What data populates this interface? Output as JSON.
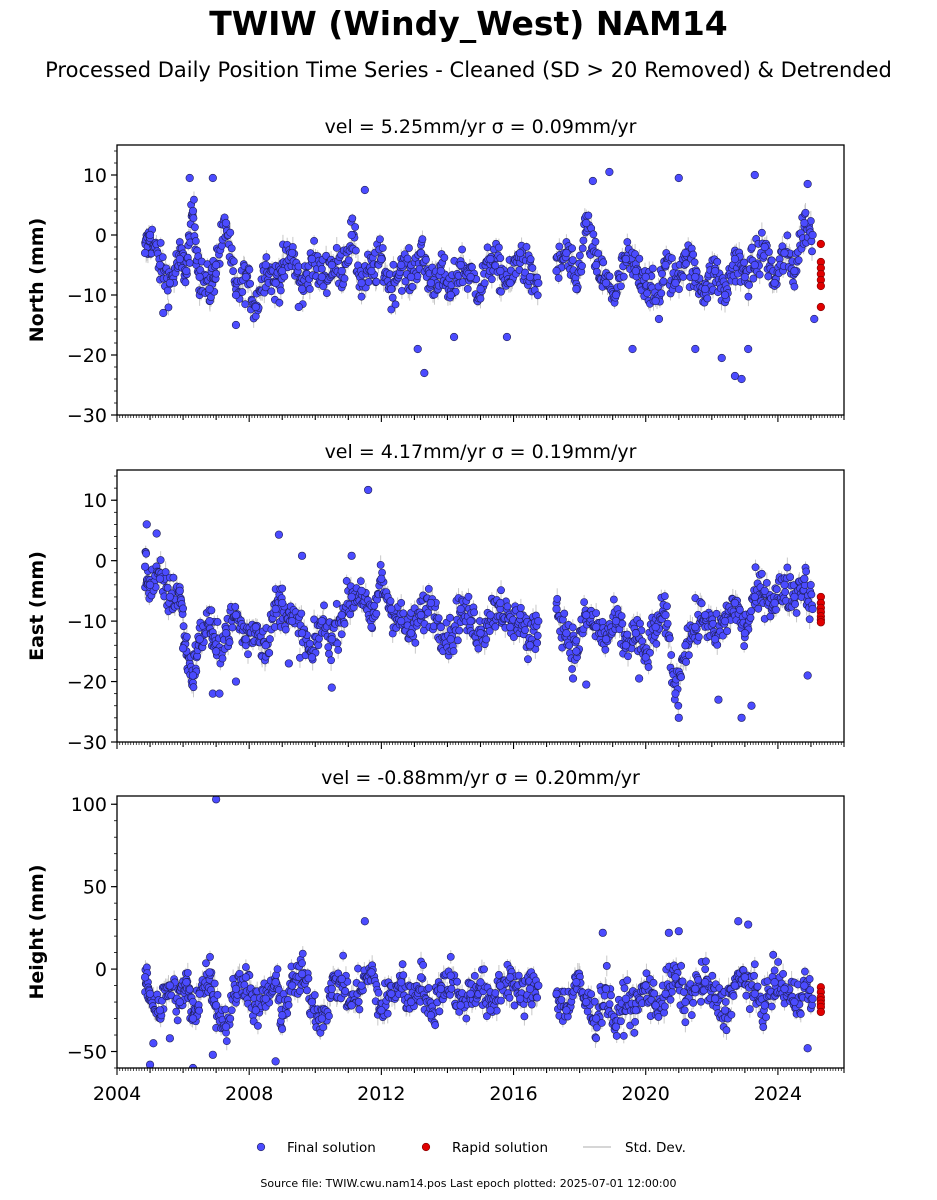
{
  "figure": {
    "title": "TWIW (Windy_West) NAM14",
    "subtitle": "Processed Daily Position Time Series - Cleaned (SD > 20 Removed) & Detrended",
    "footer": "Source file: TWIW.cwu.nam14.pos  Last epoch plotted: 2025-07-01 12:00:00"
  },
  "legend": {
    "placement": "bottom-center",
    "final_label": "Final solution",
    "rapid_label": "Rapid solution",
    "std_label": "Std. Dev."
  },
  "colors": {
    "final": "#4b4bff",
    "final_edge": "#1f1f55",
    "rapid": "#e00000",
    "std": "#c8c8c8"
  },
  "chart_data": [
    {
      "type": "scatter",
      "panel": "north",
      "title": "vel = 5.25mm/yr   σ = 0.09mm/yr",
      "ylabel": "North (mm)",
      "xlabel": "",
      "xlim": [
        2004,
        2026
      ],
      "ylim": [
        -30,
        15
      ],
      "yticks": [
        10,
        0,
        -10,
        -20,
        -30
      ],
      "ytick_labels": [
        "10",
        "0",
        "−10",
        "−20",
        "−30"
      ],
      "grid": false,
      "series": [
        {
          "role": "final",
          "name": "Final solution",
          "x": [
            2004.85,
            2005.0,
            2005.3,
            2005.6,
            2005.9,
            2006.1,
            2006.3,
            2006.5,
            2006.8,
            2007.0,
            2007.3,
            2007.6,
            2007.9,
            2008.2,
            2008.5,
            2008.8,
            2009.0,
            2009.3,
            2009.6,
            2009.9,
            2010.2,
            2010.5,
            2010.8,
            2011.1,
            2011.4,
            2011.7,
            2012.0,
            2012.3,
            2012.6,
            2012.9,
            2013.2,
            2013.5,
            2013.8,
            2014.1,
            2014.4,
            2014.7,
            2015.0,
            2015.3,
            2015.6,
            2015.9,
            2016.2,
            2016.5,
            2016.75,
            2017.3,
            2017.6,
            2017.9,
            2018.2,
            2018.5,
            2018.8,
            2019.1,
            2019.4,
            2019.7,
            2020.0,
            2020.3,
            2020.6,
            2020.9,
            2021.2,
            2021.5,
            2021.8,
            2022.1,
            2022.4,
            2022.7,
            2023.0,
            2023.3,
            2023.6,
            2023.9,
            2024.2,
            2024.5,
            2024.8,
            2025.05
          ],
          "y": [
            -3,
            0,
            -5,
            -8,
            -4,
            -6,
            4,
            -7,
            -9,
            -5,
            2,
            -10,
            -7,
            -12,
            -5,
            -8,
            -6,
            -3,
            -9,
            -4,
            -7,
            -5,
            -6,
            0,
            -8,
            -6,
            -4,
            -9,
            -5,
            -7,
            -3,
            -8,
            -6,
            -10,
            -5,
            -7,
            -9,
            -4,
            -6,
            -8,
            -3,
            -7,
            -8,
            -6,
            -3,
            -9,
            2,
            -5,
            -8,
            -10,
            -4,
            -6,
            -7,
            -11,
            -5,
            -8,
            -3,
            -7,
            -9,
            -6,
            -10,
            -4,
            -7,
            -5,
            -2,
            -8,
            -3,
            -6,
            2,
            0
          ]
        },
        {
          "role": "final_outliers",
          "name": "",
          "x": [
            2005.4,
            2006.2,
            2006.9,
            2007.6,
            2009.5,
            2011.5,
            2013.1,
            2013.3,
            2014.2,
            2015.8,
            2018.4,
            2018.9,
            2019.6,
            2020.4,
            2021.0,
            2021.5,
            2022.3,
            2022.7,
            2022.9,
            2023.1,
            2023.3,
            2024.9,
            2025.1
          ],
          "y": [
            -13,
            9.5,
            9.5,
            -15,
            -12,
            7.5,
            -19,
            -23,
            -17,
            -17,
            9,
            10.5,
            -19,
            -14,
            9.5,
            -19,
            -20.5,
            -23.5,
            -24,
            -19,
            10,
            8.5,
            -14
          ]
        },
        {
          "role": "rapid",
          "name": "Rapid solution",
          "x": [
            2025.3,
            2025.3,
            2025.3,
            2025.3,
            2025.3,
            2025.3,
            2025.3
          ],
          "y": [
            -1.5,
            -4.5,
            -5.5,
            -6.5,
            -7.5,
            -8.5,
            -12
          ]
        }
      ]
    },
    {
      "type": "scatter",
      "panel": "east",
      "title": "vel = 4.17mm/yr   σ = 0.19mm/yr",
      "ylabel": "East (mm)",
      "xlabel": "",
      "xlim": [
        2004,
        2026
      ],
      "ylim": [
        -30,
        15
      ],
      "yticks": [
        10,
        0,
        -10,
        -20,
        -30
      ],
      "ytick_labels": [
        "10",
        "0",
        "−10",
        "−20",
        "−30"
      ],
      "grid": false,
      "series": [
        {
          "role": "final",
          "name": "Final solution",
          "x": [
            2004.85,
            2005.0,
            2005.3,
            2005.6,
            2005.9,
            2006.1,
            2006.3,
            2006.5,
            2006.8,
            2007.0,
            2007.3,
            2007.6,
            2007.9,
            2008.2,
            2008.5,
            2008.8,
            2009.0,
            2009.3,
            2009.6,
            2009.9,
            2010.2,
            2010.5,
            2010.8,
            2011.1,
            2011.4,
            2011.7,
            2012.0,
            2012.3,
            2012.6,
            2012.9,
            2013.2,
            2013.5,
            2013.8,
            2014.1,
            2014.4,
            2014.7,
            2015.0,
            2015.3,
            2015.6,
            2015.9,
            2016.2,
            2016.5,
            2016.75,
            2017.3,
            2017.6,
            2017.9,
            2018.2,
            2018.5,
            2018.8,
            2019.1,
            2019.4,
            2019.7,
            2020.0,
            2020.3,
            2020.6,
            2020.9,
            2021.2,
            2021.5,
            2021.8,
            2022.1,
            2022.4,
            2022.7,
            2023.0,
            2023.3,
            2023.6,
            2023.9,
            2024.2,
            2024.5,
            2024.8,
            2025.05
          ],
          "y": [
            -1,
            -4,
            -3,
            -6,
            -5,
            -15,
            -19,
            -13,
            -10,
            -15,
            -12,
            -9,
            -13,
            -11,
            -14,
            -8,
            -7,
            -10,
            -12,
            -16,
            -10,
            -13,
            -9,
            -6,
            -5,
            -11,
            -3,
            -8,
            -10,
            -12,
            -9,
            -7,
            -11,
            -13,
            -8,
            -10,
            -12,
            -9,
            -7,
            -11,
            -9,
            -14,
            -10,
            -8,
            -12,
            -15,
            -9,
            -11,
            -13,
            -10,
            -14,
            -12,
            -16,
            -11,
            -9,
            -22,
            -14,
            -11,
            -9,
            -13,
            -10,
            -7,
            -12,
            -6,
            -5,
            -7,
            -4,
            -6,
            -3,
            -8
          ]
        },
        {
          "role": "final_outliers",
          "name": "",
          "x": [
            2004.9,
            2005.2,
            2006.0,
            2006.9,
            2007.1,
            2007.6,
            2008.9,
            2009.2,
            2009.6,
            2010.5,
            2011.1,
            2011.6,
            2017.8,
            2018.2,
            2019.8,
            2021.0,
            2022.2,
            2022.9,
            2023.2,
            2024.9
          ],
          "y": [
            6,
            4.5,
            -14.5,
            -22,
            -22,
            -20,
            4.3,
            -17,
            0.8,
            -21,
            0.8,
            11.7,
            -19.5,
            -20.5,
            -19.5,
            -26,
            -23,
            -26,
            -24,
            -19
          ]
        },
        {
          "role": "rapid",
          "name": "Rapid solution",
          "x": [
            2025.3,
            2025.3,
            2025.3,
            2025.3,
            2025.3,
            2025.3,
            2025.3
          ],
          "y": [
            -6,
            -7,
            -7.8,
            -8.5,
            -9.2,
            -9.8,
            -10.2
          ]
        }
      ]
    },
    {
      "type": "scatter",
      "panel": "height",
      "title": "vel = -0.88mm/yr   σ = 0.20mm/yr",
      "ylabel": "Height (mm)",
      "xlabel": "",
      "xlim": [
        2004,
        2026
      ],
      "ylim": [
        -60,
        105
      ],
      "yticks": [
        100,
        50,
        0,
        -50
      ],
      "ytick_labels": [
        "100",
        "50",
        "0",
        "−50"
      ],
      "xticks": [
        2004,
        2008,
        2012,
        2016,
        2020,
        2024
      ],
      "xtick_labels": [
        "2004",
        "2008",
        "2012",
        "2016",
        "2020",
        "2024"
      ],
      "grid": false,
      "series": [
        {
          "role": "final",
          "name": "Final solution",
          "x": [
            2004.85,
            2005.0,
            2005.3,
            2005.6,
            2005.9,
            2006.1,
            2006.3,
            2006.5,
            2006.8,
            2007.0,
            2007.3,
            2007.6,
            2007.9,
            2008.2,
            2008.5,
            2008.8,
            2009.0,
            2009.3,
            2009.6,
            2009.9,
            2010.2,
            2010.5,
            2010.8,
            2011.1,
            2011.4,
            2011.7,
            2012.0,
            2012.3,
            2012.6,
            2012.9,
            2013.2,
            2013.5,
            2013.8,
            2014.1,
            2014.4,
            2014.7,
            2015.0,
            2015.3,
            2015.6,
            2015.9,
            2016.2,
            2016.5,
            2016.75,
            2017.3,
            2017.6,
            2017.9,
            2018.2,
            2018.5,
            2018.8,
            2019.1,
            2019.4,
            2019.7,
            2020.0,
            2020.3,
            2020.6,
            2020.9,
            2021.2,
            2021.5,
            2021.8,
            2022.1,
            2022.4,
            2022.7,
            2023.0,
            2023.3,
            2023.6,
            2023.9,
            2024.2,
            2024.5,
            2024.8,
            2025.05
          ],
          "y": [
            -5,
            -15,
            -25,
            -10,
            -20,
            -8,
            -30,
            -15,
            -2,
            -22,
            -35,
            -12,
            -5,
            -25,
            -18,
            -8,
            -28,
            -10,
            -3,
            -20,
            -30,
            -12,
            -6,
            -22,
            -10,
            -2,
            -25,
            -15,
            -8,
            -20,
            -5,
            -28,
            -12,
            -4,
            -22,
            -15,
            -8,
            -25,
            -10,
            -5,
            -18,
            -12,
            -10,
            -15,
            -25,
            -8,
            -20,
            -30,
            -12,
            -35,
            -18,
            -25,
            -10,
            -22,
            -15,
            -5,
            -20,
            -12,
            -8,
            -18,
            -25,
            -10,
            -5,
            -15,
            -22,
            -8,
            -12,
            -20,
            -10,
            -18
          ]
        },
        {
          "role": "final_outliers",
          "name": "",
          "x": [
            2005.0,
            2005.1,
            2005.6,
            2006.3,
            2006.9,
            2007.0,
            2008.8,
            2011.5,
            2018.7,
            2020.7,
            2021.0,
            2022.8,
            2023.1,
            2024.9
          ],
          "y": [
            -58,
            -45,
            -42,
            -60,
            -52,
            103,
            -56,
            29,
            22,
            22,
            23,
            29,
            27,
            -48
          ]
        },
        {
          "role": "rapid",
          "name": "Rapid solution",
          "x": [
            2025.3,
            2025.3,
            2025.3,
            2025.3,
            2025.3,
            2025.3,
            2025.3
          ],
          "y": [
            -11,
            -14,
            -17,
            -19,
            -21,
            -23,
            -26
          ]
        }
      ]
    }
  ]
}
